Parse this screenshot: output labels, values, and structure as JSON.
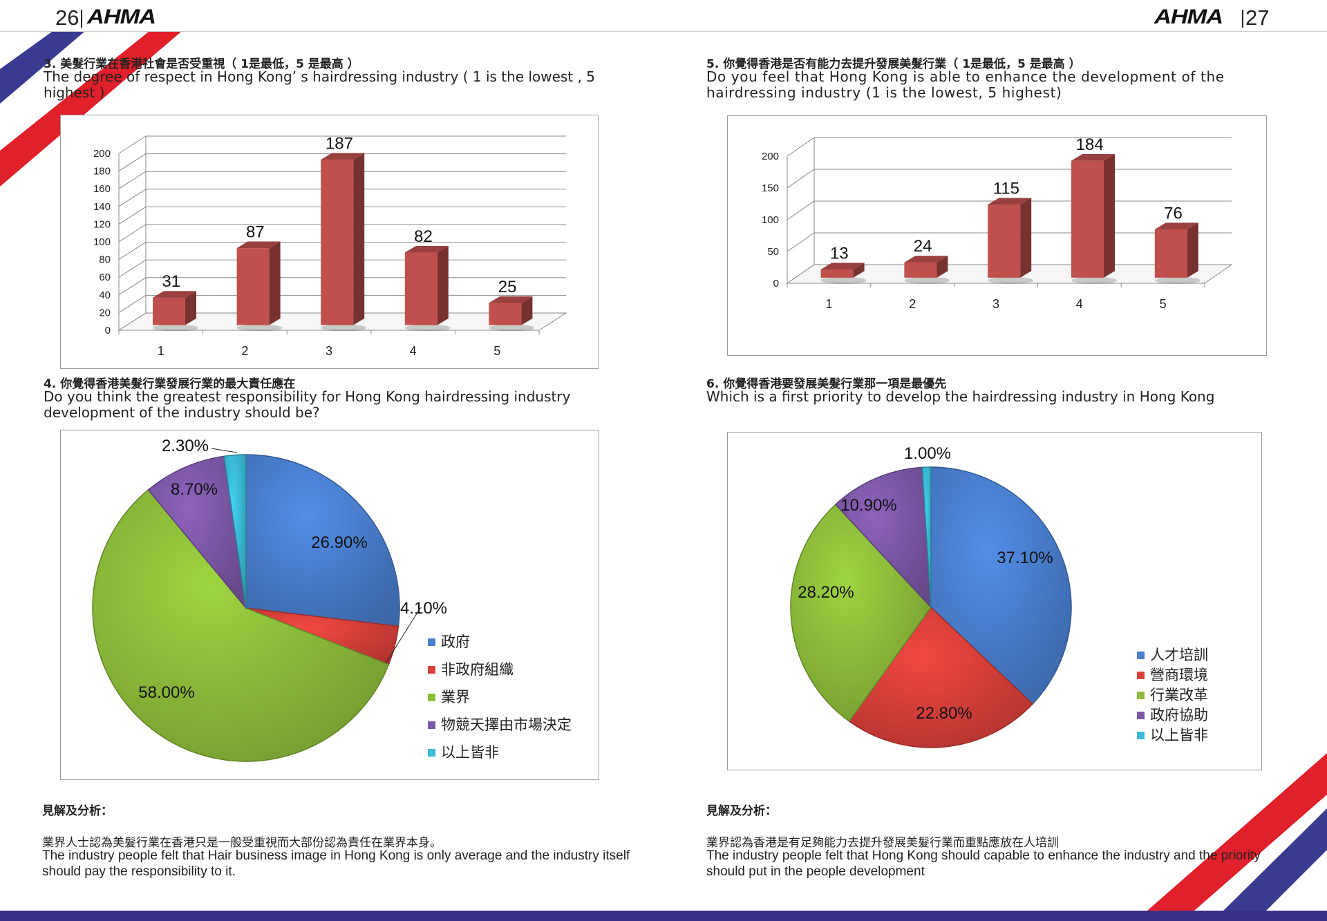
{
  "header": {
    "left_page": "26",
    "right_page": "27",
    "logo": "AHMA"
  },
  "q3": {
    "title_zh": "3. 美髮行業在香港社會是否受重視（ 1是最低，5 是最高 ）",
    "title_en": "The degree of respect in Hong Kong’ s hairdressing industry ( 1 is the lowest , 5 highest )"
  },
  "q4": {
    "title_zh": "4. 你覺得香港美髮行業發展行業的最大責任應在",
    "title_en": "Do you think the greatest responsibility for Hong Kong hairdressing industry development of the industry should be?"
  },
  "q5": {
    "title_zh": "5. 你覺得香港是否有能力去提升發展美髮行業（ 1是最低，5 是最高 ）",
    "title_en": "Do you feel that Hong Kong is able to enhance the development of the hairdressing industry (1 is the lowest, 5 highest)"
  },
  "q6": {
    "title_zh": "6. 你覺得香港要發展美髮行業那一項是最優先",
    "title_en": "Which is a first priority to develop the hairdressing industry in Hong Kong"
  },
  "analysis_left": {
    "heading": "見解及分析：",
    "zh": "業界人士認為美髮行業在香港只是一般受重視而大部份認為責任在業界本身。",
    "en": "The industry people felt that Hair business image in Hong Kong is only average and the industry itself should pay the responsibility to it."
  },
  "analysis_right": {
    "heading": "見解及分析：",
    "zh": "業界認為香港是有足夠能力去提升發展美髮行業而重點應放在人培訓",
    "en": "The industry people felt that Hong Kong should capable to enhance the industry and the priority should put in the people development"
  },
  "colors": {
    "bar": "#c0504d",
    "blue": "#4a7fcf",
    "red": "#d9403b",
    "green": "#8dbd3a",
    "purple": "#7e58a8",
    "cyan": "#3bbbd6",
    "stripe_blue": "#3a3a90",
    "stripe_red": "#e0202a"
  },
  "chart_data": [
    {
      "id": "q3",
      "type": "bar",
      "categories": [
        "1",
        "2",
        "3",
        "4",
        "5"
      ],
      "values": [
        31,
        87,
        187,
        82,
        25
      ],
      "ylim": [
        0,
        200
      ],
      "yticks": [
        "0",
        "20",
        "40",
        "60",
        "80",
        "100",
        "120",
        "140",
        "160",
        "180",
        "200"
      ]
    },
    {
      "id": "q5",
      "type": "bar",
      "categories": [
        "1",
        "2",
        "3",
        "4",
        "5"
      ],
      "values": [
        13,
        24,
        115,
        184,
        76
      ],
      "ylim": [
        0,
        200
      ],
      "yticks": [
        "0",
        "50",
        "100",
        "150",
        "200"
      ]
    },
    {
      "id": "q4",
      "type": "pie",
      "legend_position": "right",
      "slices": [
        {
          "label": "政府",
          "value": 26.9,
          "text": "26.90%"
        },
        {
          "label": "非政府組織",
          "value": 4.1,
          "text": "4.10%"
        },
        {
          "label": "業界",
          "value": 58.0,
          "text": "58.00%"
        },
        {
          "label": "物競天擇由市場決定",
          "value": 8.7,
          "text": "8.70%"
        },
        {
          "label": "以上皆非",
          "value": 2.3,
          "text": "2.30%"
        }
      ]
    },
    {
      "id": "q6",
      "type": "pie",
      "legend_position": "right",
      "slices": [
        {
          "label": "人才培訓",
          "value": 37.1,
          "text": "37.10%"
        },
        {
          "label": "營商環境",
          "value": 22.8,
          "text": "22.80%"
        },
        {
          "label": "行業改革",
          "value": 28.2,
          "text": "28.20%"
        },
        {
          "label": "政府協助",
          "value": 10.9,
          "text": "10.90%"
        },
        {
          "label": "以上皆非",
          "value": 1.0,
          "text": "1.00%"
        }
      ]
    }
  ]
}
